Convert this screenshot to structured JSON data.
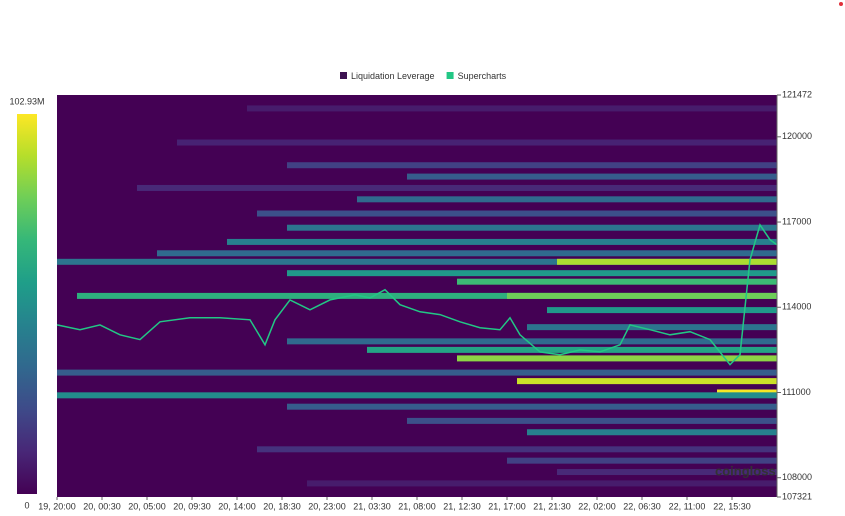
{
  "chart_data": {
    "type": "heatmap",
    "series": [
      {
        "name": "Liquidation Leverage",
        "color": "#3d1251",
        "price": [
          121000,
          119800,
          119000,
          118600,
          118200,
          117800,
          117300,
          116800,
          116300,
          115900,
          115600,
          115600,
          115200,
          114900,
          114400,
          114400,
          113900,
          113300,
          112800,
          112500,
          112200,
          111700,
          111400,
          111000,
          110900,
          110500,
          110000,
          109600,
          109000,
          108600,
          108200,
          107800
        ],
        "start": [
          19,
          12,
          23,
          35,
          8,
          30,
          20,
          23,
          17,
          10,
          0,
          50,
          23,
          40,
          2,
          45,
          49,
          47,
          23,
          31,
          40,
          0,
          46,
          66,
          0,
          23,
          35,
          47,
          20,
          45,
          50,
          25
        ],
        "values": [
          8000000,
          10000000,
          20000000,
          30000000,
          12000000,
          35000000,
          25000000,
          40000000,
          45000000,
          35000000,
          40000000,
          90000000,
          55000000,
          70000000,
          65000000,
          80000000,
          55000000,
          40000000,
          35000000,
          60000000,
          85000000,
          30000000,
          95000000,
          102000000,
          50000000,
          30000000,
          25000000,
          45000000,
          15000000,
          20000000,
          12000000,
          8000000
        ]
      },
      {
        "name": "Supercharts",
        "color": "#22c785",
        "x": [
          0,
          2.3,
          4.3,
          6.3,
          8.3,
          10.3,
          13.3,
          16.3,
          19.3,
          20.8,
          21.8,
          23.3,
          25.3,
          27.3,
          29.8,
          31.3,
          32.8,
          34.3,
          36.3,
          38.3,
          40.3,
          42.3,
          44.3,
          45.3,
          46.3,
          48.3,
          50.3,
          52.3,
          54.3,
          56.3,
          57.3,
          59.3,
          61.3,
          63.3,
          65.3,
          67.3,
          68.3,
          69.3,
          70.3,
          71.3,
          72
        ],
        "values": [
          113380,
          113210,
          113380,
          113030,
          112860,
          113490,
          113630,
          113630,
          113560,
          112680,
          113560,
          114260,
          113910,
          114260,
          114440,
          114330,
          114620,
          114090,
          113840,
          113740,
          113490,
          113280,
          113210,
          113630,
          113030,
          112430,
          112330,
          112500,
          112430,
          112680,
          113380,
          113210,
          113030,
          113140,
          112860,
          111980,
          112330,
          115670,
          116900,
          116380,
          116200
        ]
      }
    ],
    "xlim": [
      0,
      72
    ],
    "xticks": [
      {
        "value": 0,
        "label": "19, 20:00"
      },
      {
        "value": 4.5,
        "label": "20, 00:30"
      },
      {
        "value": 9,
        "label": "20, 05:00"
      },
      {
        "value": 13.5,
        "label": "20, 09:30"
      },
      {
        "value": 18,
        "label": "20, 14:00"
      },
      {
        "value": 22.5,
        "label": "20, 18:30"
      },
      {
        "value": 27,
        "label": "20, 23:00"
      },
      {
        "value": 31.5,
        "label": "21, 03:30"
      },
      {
        "value": 36,
        "label": "21, 08:00"
      },
      {
        "value": 40.5,
        "label": "21, 12:30"
      },
      {
        "value": 45,
        "label": "21, 17:00"
      },
      {
        "value": 49.5,
        "label": "21, 21:30"
      },
      {
        "value": 54,
        "label": "22, 02:00"
      },
      {
        "value": 58.5,
        "label": "22, 06:30"
      },
      {
        "value": 63,
        "label": "22, 11:00"
      },
      {
        "value": 67.5,
        "label": "22, 15:30"
      }
    ],
    "ylim": [
      107321,
      121472
    ],
    "yticks": [
      107321,
      108000,
      111000,
      114000,
      117000,
      120000,
      121472
    ],
    "clim": [
      0,
      102930000
    ],
    "cticks": [
      0,
      {
        "value": 102930000,
        "label": "102.93M"
      }
    ],
    "colormap": [
      "#440154",
      "#482777",
      "#3e4a89",
      "#31688e",
      "#26828e",
      "#1f9e89",
      "#35b779",
      "#6ece58",
      "#b5de2b",
      "#fde725"
    ],
    "watermark": "coingloss"
  }
}
